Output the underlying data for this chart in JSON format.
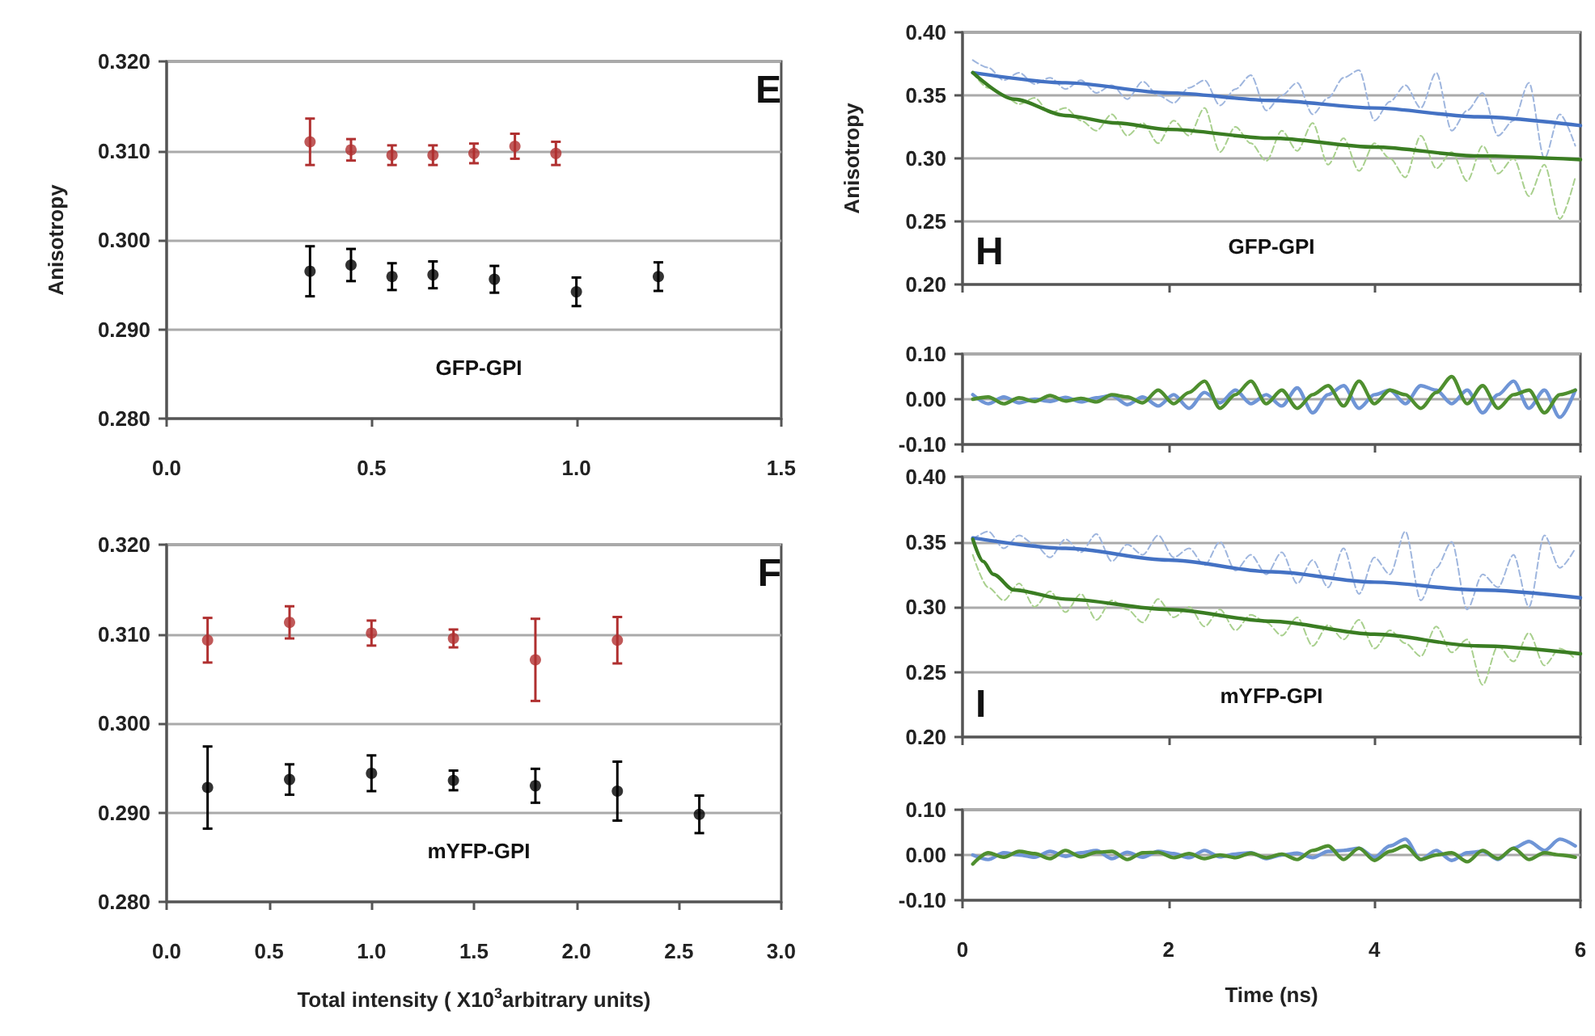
{
  "chart_data": [
    {
      "type": "scatter",
      "ylabel": "Anisotropy",
      "annotations": [
        "E",
        "GFP-GPI"
      ],
      "marker": "circle",
      "grid": "y",
      "xlim": [
        0,
        1.5
      ],
      "xticks": [
        {
          "value": 0,
          "label": "0.0"
        },
        {
          "value": 0.5,
          "label": "0.5"
        },
        {
          "value": 1,
          "label": "1.0"
        },
        {
          "value": 1.5,
          "label": "1.5"
        }
      ],
      "ylim": [
        0.28,
        0.32
      ],
      "yticks": [
        {
          "value": 0.28,
          "label": "0.280"
        },
        {
          "value": 0.29,
          "label": "0.290"
        },
        {
          "value": 0.3,
          "label": "0.300"
        },
        {
          "value": 0.31,
          "label": "0.310"
        },
        {
          "value": 0.32,
          "label": "0.320"
        }
      ],
      "series": [
        {
          "color": "#b03030",
          "x": [
            0.35,
            0.45,
            0.55,
            0.65,
            0.75,
            0.85,
            0.95
          ],
          "values": [
            0.311,
            0.3101,
            0.3095,
            0.3095,
            0.3097,
            0.3105,
            0.3097
          ],
          "errors": [
            0.0026,
            0.0012,
            0.0011,
            0.0011,
            0.0011,
            0.0014,
            0.0013
          ]
        },
        {
          "color": "#000000",
          "x": [
            0.35,
            0.45,
            0.55,
            0.65,
            0.8,
            1.0,
            1.2
          ],
          "values": [
            0.2965,
            0.2972,
            0.2959,
            0.2961,
            0.2956,
            0.2942,
            0.2959
          ],
          "errors": [
            0.0028,
            0.0018,
            0.0015,
            0.0015,
            0.0015,
            0.0016,
            0.0016
          ]
        }
      ]
    },
    {
      "type": "scatter",
      "xlabel": "Total intensity ( X10$^{3}$arbitrary units)",
      "annotations": [
        "F",
        "mYFP-GPI"
      ],
      "marker": "circle",
      "grid": "y",
      "xlim": [
        0,
        3
      ],
      "xticks": [
        {
          "value": 0,
          "label": "0.0"
        },
        {
          "value": 0.5,
          "label": "0.5"
        },
        {
          "value": 1,
          "label": "1.0"
        },
        {
          "value": 1.5,
          "label": "1.5"
        },
        {
          "value": 2,
          "label": "2.0"
        },
        {
          "value": 2.5,
          "label": "2.5"
        },
        {
          "value": 3,
          "label": "3.0"
        }
      ],
      "ylim": [
        0.28,
        0.32
      ],
      "yticks": [
        {
          "value": 0.28,
          "label": "0.280"
        },
        {
          "value": 0.29,
          "label": "0.290"
        },
        {
          "value": 0.3,
          "label": "0.300"
        },
        {
          "value": 0.31,
          "label": "0.310"
        },
        {
          "value": 0.32,
          "label": "0.320"
        }
      ],
      "series": [
        {
          "color": "#b03030",
          "x": [
            0.2,
            0.6,
            1.0,
            1.4,
            1.8,
            2.2
          ],
          "values": [
            0.3093,
            0.3113,
            0.3101,
            0.3095,
            0.3071,
            0.3093
          ],
          "errors": [
            0.0025,
            0.0018,
            0.0014,
            0.001,
            0.0046,
            0.0026
          ]
        },
        {
          "color": "#000000",
          "x": [
            0.2,
            0.6,
            1.0,
            1.4,
            1.8,
            2.2,
            2.6
          ],
          "values": [
            0.2928,
            0.2937,
            0.2944,
            0.2936,
            0.293,
            0.2924,
            0.2898
          ],
          "errors": [
            0.0046,
            0.0017,
            0.002,
            0.0011,
            0.0019,
            0.0033,
            0.0021
          ]
        }
      ]
    },
    {
      "type": "line",
      "ylabel": "Anisotropy",
      "annotations": [
        "H",
        "GFP-GPI"
      ],
      "marker": "none",
      "grid": "y",
      "tick_labels": "y",
      "xlim": [
        0,
        6
      ],
      "xticks": [
        {
          "value": 0,
          "label": null
        },
        {
          "value": 2,
          "label": null
        },
        {
          "value": 4,
          "label": null
        },
        {
          "value": 6,
          "label": null
        }
      ],
      "ylim": [
        0.2,
        0.4
      ],
      "yticks": [
        {
          "value": 0.2,
          "label": "0.20"
        },
        {
          "value": 0.25,
          "label": "0.25"
        },
        {
          "value": 0.3,
          "label": "0.30"
        },
        {
          "value": 0.35,
          "label": "0.35"
        },
        {
          "value": 0.4,
          "label": "0.40"
        }
      ],
      "x": [
        0.1,
        0.25,
        0.4,
        0.55,
        0.7,
        0.85,
        1.0,
        1.15,
        1.3,
        1.45,
        1.6,
        1.75,
        1.9,
        2.05,
        2.2,
        2.35,
        2.5,
        2.65,
        2.8,
        2.95,
        3.1,
        3.25,
        3.4,
        3.55,
        3.7,
        3.85,
        4.0,
        4.15,
        4.3,
        4.45,
        4.6,
        4.75,
        4.9,
        5.05,
        5.2,
        5.35,
        5.5,
        5.65,
        5.8,
        5.95
      ],
      "series": [
        {
          "color": "#9fb6de",
          "line_style": "dashed",
          "values": [
            0.378,
            0.372,
            0.362,
            0.368,
            0.359,
            0.364,
            0.355,
            0.362,
            0.352,
            0.358,
            0.347,
            0.361,
            0.35,
            0.344,
            0.356,
            0.362,
            0.342,
            0.355,
            0.366,
            0.338,
            0.35,
            0.36,
            0.335,
            0.348,
            0.364,
            0.37,
            0.33,
            0.345,
            0.358,
            0.34,
            0.368,
            0.322,
            0.338,
            0.352,
            0.318,
            0.33,
            0.36,
            0.3,
            0.335,
            0.31
          ]
        },
        {
          "color": "#a9d08e",
          "line_style": "dashed",
          "values": [
            0.368,
            0.356,
            0.35,
            0.343,
            0.348,
            0.336,
            0.34,
            0.33,
            0.322,
            0.335,
            0.318,
            0.328,
            0.312,
            0.33,
            0.318,
            0.34,
            0.305,
            0.325,
            0.312,
            0.298,
            0.322,
            0.306,
            0.328,
            0.295,
            0.316,
            0.29,
            0.312,
            0.3,
            0.285,
            0.318,
            0.292,
            0.305,
            0.282,
            0.31,
            0.288,
            0.3,
            0.27,
            0.295,
            0.252,
            0.285
          ]
        },
        {
          "color": "#4472c4",
          "line_style": "solid",
          "x": [
            0.1,
            1,
            2,
            3,
            4,
            5,
            6
          ],
          "values": [
            0.368,
            0.36,
            0.352,
            0.346,
            0.34,
            0.333,
            0.326
          ]
        },
        {
          "color": "#3a7d22",
          "line_style": "solid",
          "x": [
            0.1,
            0.5,
            1,
            1.5,
            2,
            3,
            4,
            5,
            6
          ],
          "values": [
            0.368,
            0.347,
            0.334,
            0.328,
            0.323,
            0.316,
            0.309,
            0.302,
            0.299
          ]
        }
      ]
    },
    {
      "type": "line",
      "marker": "none",
      "grid": "y",
      "tick_labels": "y",
      "xlim": [
        0,
        6
      ],
      "xticks": [
        {
          "value": 0,
          "label": null
        },
        {
          "value": 2,
          "label": null
        },
        {
          "value": 4,
          "label": null
        },
        {
          "value": 6,
          "label": null
        }
      ],
      "ylim": [
        -0.1,
        0.1
      ],
      "yticks": [
        {
          "value": -0.1,
          "label": "-0.10"
        },
        {
          "value": 0,
          "label": "0.00"
        },
        {
          "value": 0.1,
          "label": "0.10"
        }
      ],
      "x": [
        0.1,
        0.25,
        0.4,
        0.55,
        0.7,
        0.85,
        1.0,
        1.15,
        1.3,
        1.45,
        1.6,
        1.75,
        1.9,
        2.05,
        2.2,
        2.35,
        2.5,
        2.65,
        2.8,
        2.95,
        3.1,
        3.25,
        3.4,
        3.55,
        3.7,
        3.85,
        4.0,
        4.15,
        4.3,
        4.45,
        4.6,
        4.75,
        4.9,
        5.05,
        5.2,
        5.35,
        5.5,
        5.65,
        5.8,
        5.95
      ],
      "series": [
        {
          "color": "#6f95d6",
          "line_style": "solid",
          "values": [
            0.01,
            -0.01,
            0.005,
            -0.008,
            0.0,
            -0.005,
            0.004,
            -0.006,
            0.003,
            0.008,
            -0.012,
            0.005,
            -0.015,
            0.01,
            -0.02,
            0.015,
            -0.008,
            0.02,
            -0.01,
            0.01,
            -0.015,
            0.025,
            -0.03,
            0.01,
            0.03,
            -0.02,
            0.01,
            0.02,
            -0.01,
            0.03,
            0.02,
            -0.01,
            0.02,
            -0.03,
            0.01,
            0.04,
            -0.02,
            0.02,
            -0.04,
            0.02
          ]
        },
        {
          "color": "#4f8f2f",
          "line_style": "solid",
          "values": [
            0.0,
            0.005,
            -0.01,
            0.003,
            -0.005,
            0.008,
            -0.004,
            0.002,
            -0.006,
            0.01,
            0.005,
            -0.008,
            0.02,
            -0.01,
            0.015,
            0.04,
            -0.02,
            0.01,
            0.04,
            -0.01,
            0.02,
            -0.02,
            0.01,
            0.03,
            -0.015,
            0.04,
            -0.01,
            0.02,
            0.01,
            -0.02,
            0.015,
            0.05,
            -0.01,
            0.03,
            -0.02,
            0.01,
            0.02,
            -0.03,
            0.01,
            0.02
          ]
        }
      ]
    },
    {
      "type": "line",
      "annotations": [
        "I",
        "mYFP-GPI"
      ],
      "marker": "none",
      "grid": "y",
      "tick_labels": "y",
      "xlim": [
        0,
        6
      ],
      "xticks": [
        {
          "value": 0,
          "label": null
        },
        {
          "value": 2,
          "label": null
        },
        {
          "value": 4,
          "label": null
        },
        {
          "value": 6,
          "label": null
        }
      ],
      "ylim": [
        0.2,
        0.4
      ],
      "yticks": [
        {
          "value": 0.2,
          "label": "0.20"
        },
        {
          "value": 0.25,
          "label": "0.25"
        },
        {
          "value": 0.3,
          "label": "0.30"
        },
        {
          "value": 0.35,
          "label": "0.35"
        },
        {
          "value": 0.4,
          "label": "0.40"
        }
      ],
      "x": [
        0.1,
        0.25,
        0.4,
        0.55,
        0.7,
        0.85,
        1.0,
        1.15,
        1.3,
        1.45,
        1.6,
        1.75,
        1.9,
        2.05,
        2.2,
        2.35,
        2.5,
        2.65,
        2.8,
        2.95,
        3.1,
        3.25,
        3.4,
        3.55,
        3.7,
        3.85,
        4.0,
        4.15,
        4.3,
        4.45,
        4.6,
        4.75,
        4.9,
        5.05,
        5.2,
        5.35,
        5.5,
        5.65,
        5.8,
        5.95
      ],
      "series": [
        {
          "color": "#9fb6de",
          "line_style": "dashed",
          "values": [
            0.352,
            0.358,
            0.345,
            0.355,
            0.348,
            0.338,
            0.352,
            0.342,
            0.356,
            0.335,
            0.348,
            0.34,
            0.355,
            0.338,
            0.345,
            0.332,
            0.35,
            0.328,
            0.34,
            0.325,
            0.342,
            0.318,
            0.336,
            0.315,
            0.345,
            0.31,
            0.338,
            0.325,
            0.358,
            0.305,
            0.33,
            0.35,
            0.298,
            0.325,
            0.315,
            0.34,
            0.3,
            0.355,
            0.33,
            0.345
          ]
        },
        {
          "color": "#a9d08e",
          "line_style": "dashed",
          "values": [
            0.34,
            0.315,
            0.305,
            0.318,
            0.3,
            0.312,
            0.296,
            0.31,
            0.29,
            0.305,
            0.298,
            0.288,
            0.306,
            0.292,
            0.3,
            0.285,
            0.298,
            0.282,
            0.294,
            0.288,
            0.278,
            0.292,
            0.27,
            0.286,
            0.275,
            0.29,
            0.268,
            0.282,
            0.272,
            0.262,
            0.285,
            0.265,
            0.275,
            0.24,
            0.27,
            0.258,
            0.28,
            0.255,
            0.268,
            0.26
          ]
        },
        {
          "color": "#4472c4",
          "line_style": "solid",
          "x": [
            0.1,
            1,
            2,
            3,
            4,
            5,
            6
          ],
          "values": [
            0.353,
            0.345,
            0.336,
            0.327,
            0.319,
            0.313,
            0.307
          ]
        },
        {
          "color": "#3a7d22",
          "line_style": "solid",
          "x": [
            0.1,
            0.2,
            0.3,
            0.5,
            1,
            2,
            3,
            4,
            5,
            6
          ],
          "values": [
            0.352,
            0.335,
            0.325,
            0.313,
            0.306,
            0.298,
            0.289,
            0.279,
            0.27,
            0.264
          ]
        }
      ]
    },
    {
      "type": "line",
      "xlabel": "Time (ns)",
      "marker": "none",
      "grid": "y",
      "xlim": [
        0,
        6
      ],
      "xticks": [
        0,
        2,
        4,
        6
      ],
      "ylim": [
        -0.1,
        0.1
      ],
      "yticks": [
        {
          "value": -0.1,
          "label": "-0.10"
        },
        {
          "value": 0,
          "label": "0.00"
        },
        {
          "value": 0.1,
          "label": "0.10"
        }
      ],
      "x": [
        0.1,
        0.25,
        0.4,
        0.55,
        0.7,
        0.85,
        1.0,
        1.15,
        1.3,
        1.45,
        1.6,
        1.75,
        1.9,
        2.05,
        2.2,
        2.35,
        2.5,
        2.65,
        2.8,
        2.95,
        3.1,
        3.25,
        3.4,
        3.55,
        3.7,
        3.85,
        4.0,
        4.15,
        4.3,
        4.45,
        4.6,
        4.75,
        4.9,
        5.05,
        5.2,
        5.35,
        5.5,
        5.65,
        5.8,
        5.95
      ],
      "series": [
        {
          "color": "#6f95d6",
          "line_style": "solid",
          "values": [
            0.0,
            -0.01,
            0.005,
            0.0,
            -0.005,
            0.008,
            -0.003,
            0.005,
            0.01,
            -0.008,
            0.006,
            -0.005,
            0.008,
            0.003,
            -0.006,
            0.01,
            -0.004,
            0.002,
            0.005,
            -0.008,
            0.0,
            0.004,
            -0.006,
            0.008,
            0.01,
            0.015,
            -0.005,
            0.02,
            0.035,
            -0.01,
            0.01,
            -0.012,
            0.005,
            0.008,
            -0.01,
            0.015,
            0.03,
            0.01,
            0.035,
            0.02
          ]
        },
        {
          "color": "#4f8f2f",
          "line_style": "solid",
          "values": [
            -0.02,
            0.005,
            -0.005,
            0.008,
            0.003,
            -0.008,
            0.01,
            -0.004,
            0.006,
            0.008,
            -0.01,
            0.005,
            0.006,
            -0.006,
            0.003,
            -0.008,
            0.0,
            -0.006,
            0.004,
            -0.006,
            0.002,
            -0.01,
            0.01,
            0.02,
            -0.01,
            0.015,
            -0.012,
            0.008,
            0.02,
            -0.01,
            0.0,
            0.005,
            -0.015,
            0.01,
            -0.008,
            0.015,
            -0.01,
            0.005,
            0.0,
            -0.005
          ]
        }
      ]
    }
  ]
}
